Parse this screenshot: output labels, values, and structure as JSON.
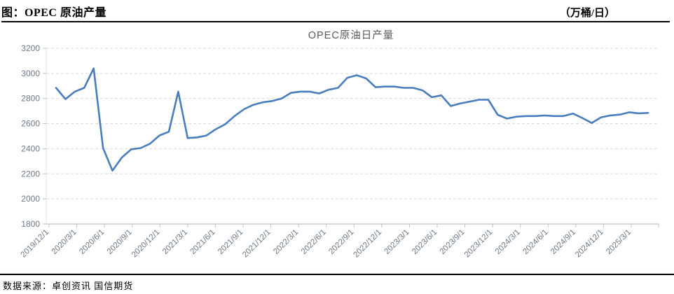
{
  "page": {
    "header_title": "图：OPEC 原油产量",
    "header_unit": "（万桶/日）",
    "footer_source": "数据来源：卓创资讯  国信期货"
  },
  "chart_data": {
    "type": "line",
    "title": "OPEC原油日产量",
    "legend": "none",
    "grid": "horizontal-dashed",
    "line_color": "#4a7ebb",
    "grid_color": "#d9d9d9",
    "axis_color": "#c0c0c0",
    "tick_label_color": "#6e7887",
    "title_color": "#595959",
    "ylim": [
      1800,
      3200
    ],
    "y_ticks": [
      1800,
      2000,
      2200,
      2400,
      2600,
      2800,
      3000,
      3200
    ],
    "x_tick_labels": [
      "2019/12/1",
      "2020/3/1",
      "2020/6/1",
      "2020/9/1",
      "2020/12/1",
      "2021/3/1",
      "2021/6/1",
      "2021/9/1",
      "2021/12/1",
      "2022/3/1",
      "2022/6/1",
      "2022/9/1",
      "2022/12/1",
      "2023/3/1",
      "2023/6/1",
      "2023/9/1",
      "2023/12/1",
      "2024/3/1",
      "2024/6/1",
      "2024/9/1",
      "2024/12/1",
      "2025/3/1"
    ],
    "x": [
      "2019/12",
      "2020/1",
      "2020/2",
      "2020/3",
      "2020/4",
      "2020/5",
      "2020/6",
      "2020/7",
      "2020/8",
      "2020/9",
      "2020/10",
      "2020/11",
      "2020/12",
      "2021/1",
      "2021/2",
      "2021/3",
      "2021/4",
      "2021/5",
      "2021/6",
      "2021/7",
      "2021/8",
      "2021/9",
      "2021/10",
      "2021/11",
      "2021/12",
      "2022/1",
      "2022/2",
      "2022/3",
      "2022/4",
      "2022/5",
      "2022/6",
      "2022/7",
      "2022/8",
      "2022/9",
      "2022/10",
      "2022/11",
      "2022/12",
      "2023/1",
      "2023/2",
      "2023/3",
      "2023/4",
      "2023/5",
      "2023/6",
      "2023/7",
      "2023/8",
      "2023/9",
      "2023/10",
      "2023/11",
      "2023/12",
      "2024/1",
      "2024/2",
      "2024/3",
      "2024/4",
      "2024/5",
      "2024/6",
      "2024/7",
      "2024/8",
      "2024/9",
      "2024/10",
      "2024/11",
      "2024/12",
      "2025/1",
      "2025/2",
      "2025/3"
    ],
    "values": [
      2885,
      2795,
      2855,
      2885,
      3040,
      2405,
      2225,
      2330,
      2395,
      2405,
      2440,
      2505,
      2535,
      2855,
      2485,
      2490,
      2505,
      2555,
      2595,
      2660,
      2715,
      2750,
      2770,
      2780,
      2800,
      2845,
      2855,
      2855,
      2840,
      2870,
      2885,
      2965,
      2985,
      2960,
      2890,
      2895,
      2895,
      2885,
      2885,
      2865,
      2810,
      2825,
      2740,
      2760,
      2775,
      2790,
      2790,
      2670,
      2640,
      2655,
      2660,
      2660,
      2665,
      2660,
      2660,
      2680,
      2645,
      2605,
      2650,
      2665,
      2672,
      2690,
      2682,
      2685
    ]
  }
}
